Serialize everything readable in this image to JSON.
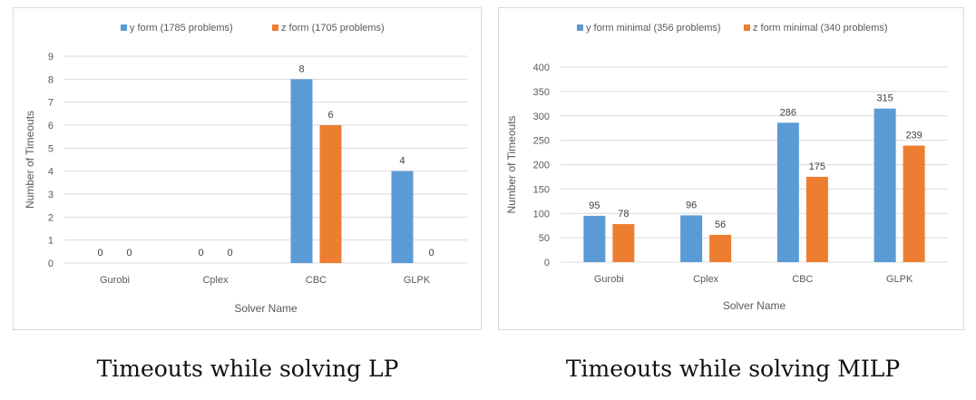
{
  "colors": {
    "series_a": "#5b9bd5",
    "series_b": "#ed7d31",
    "grid": "#d9d9d9",
    "axis_text": "#595959"
  },
  "captions": [
    "Timeouts while solving LP",
    "Timeouts while solving MILP"
  ],
  "chart_data": [
    {
      "type": "bar",
      "title": "",
      "xlabel": "Solver Name",
      "ylabel": "Number  of Timeouts",
      "categories": [
        "Gurobi",
        "Cplex",
        "CBC",
        "GLPK"
      ],
      "series": [
        {
          "name": "y form (1785 problems)",
          "values": [
            0,
            0,
            8,
            4
          ]
        },
        {
          "name": "z form (1705 problems)",
          "values": [
            0,
            0,
            6,
            0
          ]
        }
      ],
      "ylim": [
        0,
        9
      ],
      "yticks": [
        0,
        1,
        2,
        3,
        4,
        5,
        6,
        7,
        8,
        9
      ],
      "grid": true,
      "legend": "top-center"
    },
    {
      "type": "bar",
      "title": "",
      "xlabel": "Solver Name",
      "ylabel": "Number  of Timeouts",
      "categories": [
        "Gurobi",
        "Cplex",
        "CBC",
        "GLPK"
      ],
      "series": [
        {
          "name": "y form minimal (356 problems)",
          "values": [
            95,
            96,
            286,
            315
          ]
        },
        {
          "name": "z form minimal (340 problems)",
          "values": [
            78,
            56,
            175,
            239
          ]
        }
      ],
      "ylim": [
        0,
        400
      ],
      "yticks": [
        0,
        50,
        100,
        150,
        200,
        250,
        300,
        350,
        400
      ],
      "grid": true,
      "legend": "top-center"
    }
  ]
}
